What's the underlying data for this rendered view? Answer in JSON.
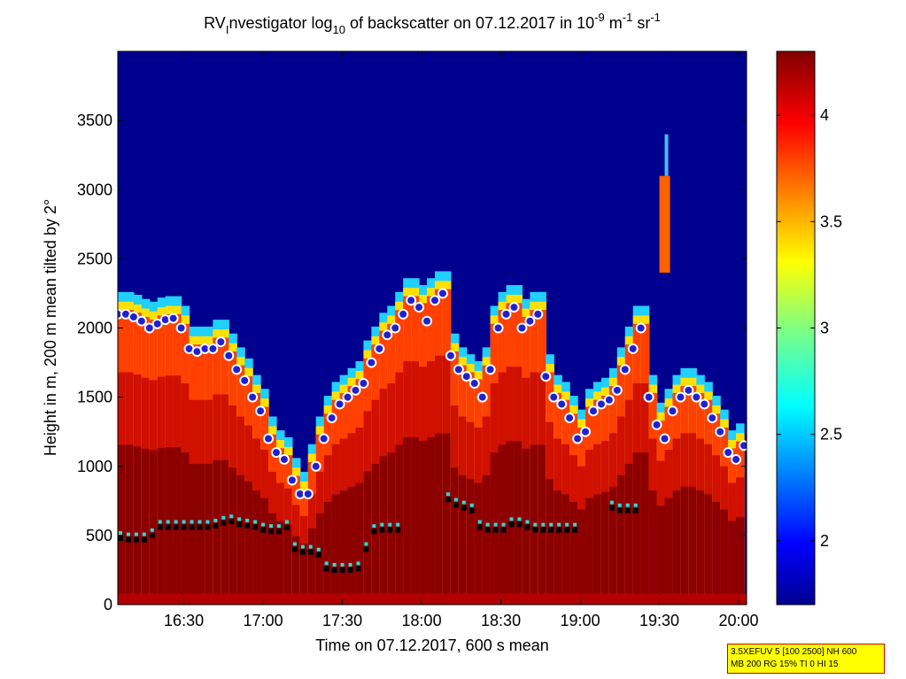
{
  "chart_data": {
    "type": "heatmap",
    "title": {
      "prefix": "RV",
      "sub": "I",
      "mid": "nvestigator log",
      "sub10": "10",
      "rest": " of backscatter on 07.12.2017 in 10",
      "sup1": "-9",
      "unit_m": " m",
      "sup2": "-1",
      "unit_sr": " sr",
      "sup3": "-1"
    },
    "xlabel": "Time on 07.12.2017, 600 s mean",
    "ylabel": "Height in m, 200 m mean tilted by 2°",
    "xlim_minutes": [
      965,
      1203
    ],
    "ylim": [
      0,
      4000
    ],
    "x_ticks": [
      {
        "t": 990,
        "label": "16:30"
      },
      {
        "t": 1020,
        "label": "17:00"
      },
      {
        "t": 1050,
        "label": "17:30"
      },
      {
        "t": 1080,
        "label": "18:00"
      },
      {
        "t": 1110,
        "label": "18:30"
      },
      {
        "t": 1140,
        "label": "19:00"
      },
      {
        "t": 1170,
        "label": "19:30"
      },
      {
        "t": 1200,
        "label": "20:00"
      }
    ],
    "y_ticks": [
      0,
      500,
      1000,
      1500,
      2000,
      2500,
      3000,
      3500
    ],
    "colorbar": {
      "range": [
        1.7,
        4.3
      ],
      "ticks": [
        {
          "v": 2.0,
          "label": "2"
        },
        {
          "v": 2.5,
          "label": "2.5"
        },
        {
          "v": 3.0,
          "label": "3"
        },
        {
          "v": 3.5,
          "label": "3.5"
        },
        {
          "v": 4.0,
          "label": "4"
        }
      ],
      "colormap": "jet"
    },
    "boundary_layer_top": [
      [
        965,
        2100
      ],
      [
        968,
        2100
      ],
      [
        971,
        2080
      ],
      [
        974,
        2050
      ],
      [
        977,
        2000
      ],
      [
        980,
        2030
      ],
      [
        983,
        2060
      ],
      [
        986,
        2070
      ],
      [
        989,
        2000
      ],
      [
        992,
        1850
      ],
      [
        995,
        1830
      ],
      [
        998,
        1850
      ],
      [
        1001,
        1850
      ],
      [
        1004,
        1900
      ],
      [
        1007,
        1800
      ],
      [
        1010,
        1700
      ],
      [
        1013,
        1620
      ],
      [
        1016,
        1500
      ],
      [
        1019,
        1400
      ],
      [
        1022,
        1200
      ],
      [
        1025,
        1100
      ],
      [
        1028,
        1050
      ],
      [
        1031,
        900
      ],
      [
        1034,
        800
      ],
      [
        1037,
        800
      ],
      [
        1040,
        1000
      ],
      [
        1043,
        1200
      ],
      [
        1046,
        1350
      ],
      [
        1049,
        1450
      ],
      [
        1052,
        1500
      ],
      [
        1055,
        1550
      ],
      [
        1058,
        1600
      ],
      [
        1061,
        1750
      ],
      [
        1064,
        1850
      ],
      [
        1067,
        1950
      ],
      [
        1070,
        2000
      ],
      [
        1073,
        2100
      ],
      [
        1076,
        2200
      ],
      [
        1079,
        2150
      ],
      [
        1082,
        2050
      ],
      [
        1085,
        2200
      ],
      [
        1088,
        2250
      ],
      [
        1091,
        1800
      ],
      [
        1094,
        1700
      ],
      [
        1097,
        1650
      ],
      [
        1100,
        1600
      ],
      [
        1103,
        1500
      ],
      [
        1106,
        1700
      ],
      [
        1109,
        2000
      ],
      [
        1112,
        2100
      ],
      [
        1115,
        2150
      ],
      [
        1118,
        2000
      ],
      [
        1121,
        2050
      ],
      [
        1124,
        2100
      ],
      [
        1127,
        1650
      ],
      [
        1130,
        1500
      ],
      [
        1133,
        1450
      ],
      [
        1136,
        1350
      ],
      [
        1139,
        1200
      ],
      [
        1142,
        1250
      ],
      [
        1145,
        1400
      ],
      [
        1148,
        1450
      ],
      [
        1151,
        1480
      ],
      [
        1154,
        1550
      ],
      [
        1157,
        1700
      ],
      [
        1160,
        1850
      ],
      [
        1163,
        2000
      ],
      [
        1166,
        1500
      ],
      [
        1169,
        1300
      ],
      [
        1172,
        1200
      ],
      [
        1175,
        1400
      ],
      [
        1178,
        1500
      ],
      [
        1181,
        1550
      ],
      [
        1184,
        1500
      ],
      [
        1187,
        1450
      ],
      [
        1190,
        1350
      ],
      [
        1193,
        1250
      ],
      [
        1196,
        1100
      ],
      [
        1199,
        1050
      ],
      [
        1202,
        1150
      ]
    ],
    "cloud_base_points": [
      [
        966,
        480
      ],
      [
        969,
        470
      ],
      [
        972,
        470
      ],
      [
        975,
        470
      ],
      [
        978,
        500
      ],
      [
        981,
        560
      ],
      [
        984,
        560
      ],
      [
        987,
        560
      ],
      [
        990,
        560
      ],
      [
        993,
        560
      ],
      [
        996,
        560
      ],
      [
        999,
        560
      ],
      [
        1002,
        570
      ],
      [
        1005,
        590
      ],
      [
        1008,
        600
      ],
      [
        1011,
        580
      ],
      [
        1014,
        570
      ],
      [
        1017,
        560
      ],
      [
        1020,
        540
      ],
      [
        1023,
        530
      ],
      [
        1026,
        530
      ],
      [
        1029,
        560
      ],
      [
        1032,
        400
      ],
      [
        1035,
        380
      ],
      [
        1038,
        380
      ],
      [
        1041,
        360
      ],
      [
        1044,
        260
      ],
      [
        1047,
        250
      ],
      [
        1050,
        250
      ],
      [
        1053,
        250
      ],
      [
        1056,
        260
      ],
      [
        1059,
        400
      ],
      [
        1062,
        530
      ],
      [
        1065,
        540
      ],
      [
        1068,
        540
      ],
      [
        1071,
        540
      ],
      [
        1090,
        760
      ],
      [
        1093,
        720
      ],
      [
        1096,
        700
      ],
      [
        1099,
        680
      ],
      [
        1102,
        560
      ],
      [
        1105,
        540
      ],
      [
        1108,
        540
      ],
      [
        1111,
        540
      ],
      [
        1114,
        580
      ],
      [
        1117,
        580
      ],
      [
        1120,
        560
      ],
      [
        1123,
        540
      ],
      [
        1126,
        540
      ],
      [
        1129,
        540
      ],
      [
        1132,
        540
      ],
      [
        1135,
        540
      ],
      [
        1138,
        540
      ],
      [
        1152,
        700
      ],
      [
        1155,
        680
      ],
      [
        1158,
        680
      ],
      [
        1161,
        680
      ]
    ],
    "colors": {
      "background_high": "#000080",
      "info_box_bg": "#ffff00",
      "info_box_border": "#cc0000",
      "marker_fill": "#2020d0",
      "marker_ring": "#ffffff",
      "cloud_marker": "#20e0e0"
    }
  },
  "info_box": {
    "line1": "3.5XEFUV 5 [100 2500] NH 600",
    "line2": "MB 200 RG 15% TI 0 HI 15"
  }
}
